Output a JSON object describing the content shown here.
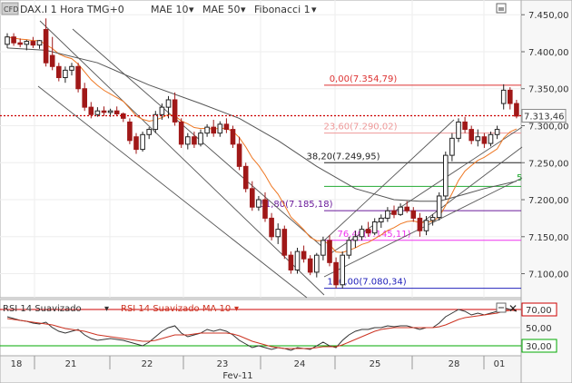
{
  "header": {
    "logo": "CFD",
    "symbol": "DAX.I 1 Hora TMG+0",
    "indicators": [
      {
        "label": "MAE 10",
        "color": "#ee7722"
      },
      {
        "label": "MAE 50",
        "color": "#555555"
      },
      {
        "label": "Fibonacci 1",
        "color": "#555555"
      }
    ]
  },
  "rsi_header": {
    "rsi_label": "RSI 14 Suavizado",
    "ma_label": "RSI 14 Suavizado MA 10"
  },
  "colors": {
    "up_candle": "#222222",
    "down_candle": "#a01818",
    "mae10": "#ee7722",
    "mae50": "#555555",
    "channel": "#555555",
    "current_price_line": "#cc0000",
    "rsi_line": "#333333",
    "rsi_ma": "#cc3322",
    "rsi_upper": "#cc0000",
    "rsi_lower": "#00aa00"
  },
  "chart_data": {
    "type": "candlestick",
    "x_tick_labels": [
      "18",
      "21",
      "22",
      "23",
      "24",
      "25",
      "28",
      "01"
    ],
    "x_group_label": "Fev-11",
    "y_tick_labels": [
      "7.450,00",
      "7.400,00",
      "7.350,00",
      "7.300,00",
      "7.250,00",
      "7.200,00",
      "7.150,00",
      "7.100,00"
    ],
    "ylim": [
      7070,
      7465
    ],
    "current_price": 7313.46,
    "current_price_label": "7.313,46",
    "fibonacci": [
      {
        "label": "0,00(7.354,79)",
        "value": 7354.79,
        "color": "#dd3333"
      },
      {
        "label": "23,60(7.290,02)",
        "value": 7290.02,
        "color": "#ee9999"
      },
      {
        "label": "38,20(7.249,95)",
        "value": 7249.95,
        "color": "#222222"
      },
      {
        "label": "61,80(7.185,18)",
        "value": 7185.18,
        "color": "#6a1a9a"
      },
      {
        "label": "76,40(7.145,11)",
        "value": 7145.11,
        "color": "#ee33ee"
      },
      {
        "label": "100,00(7.080,34)",
        "value": 7080.34,
        "color": "#2222bb"
      }
    ],
    "fib_right_label": "5",
    "candles": [
      [
        7410,
        7425,
        7405,
        7420
      ],
      [
        7420,
        7425,
        7408,
        7412
      ],
      [
        7412,
        7418,
        7406,
        7410
      ],
      [
        7410,
        7416,
        7402,
        7414
      ],
      [
        7414,
        7420,
        7405,
        7409
      ],
      [
        7409,
        7416,
        7404,
        7415
      ],
      [
        7430,
        7445,
        7380,
        7385
      ],
      [
        7395,
        7420,
        7375,
        7380
      ],
      [
        7380,
        7385,
        7360,
        7365
      ],
      [
        7365,
        7380,
        7358,
        7375
      ],
      [
        7375,
        7385,
        7368,
        7380
      ],
      [
        7380,
        7385,
        7345,
        7350
      ],
      [
        7350,
        7358,
        7320,
        7325
      ],
      [
        7325,
        7332,
        7310,
        7315
      ],
      [
        7315,
        7325,
        7312,
        7320
      ],
      [
        7320,
        7326,
        7313,
        7318
      ],
      [
        7318,
        7323,
        7312,
        7320
      ],
      [
        7320,
        7326,
        7314,
        7316
      ],
      [
        7316,
        7318,
        7305,
        7310
      ],
      [
        7305,
        7310,
        7275,
        7280
      ],
      [
        7285,
        7290,
        7262,
        7268
      ],
      [
        7268,
        7292,
        7265,
        7288
      ],
      [
        7288,
        7298,
        7282,
        7295
      ],
      [
        7295,
        7320,
        7290,
        7315
      ],
      [
        7315,
        7330,
        7308,
        7325
      ],
      [
        7325,
        7340,
        7310,
        7335
      ],
      [
        7335,
        7345,
        7300,
        7305
      ],
      [
        7305,
        7310,
        7270,
        7275
      ],
      [
        7275,
        7290,
        7268,
        7285
      ],
      [
        7285,
        7292,
        7270,
        7275
      ],
      [
        7275,
        7295,
        7272,
        7290
      ],
      [
        7290,
        7302,
        7285,
        7298
      ],
      [
        7298,
        7308,
        7285,
        7290
      ],
      [
        7290,
        7306,
        7285,
        7302
      ],
      [
        7302,
        7310,
        7290,
        7295
      ],
      [
        7295,
        7300,
        7270,
        7275
      ],
      [
        7275,
        7285,
        7240,
        7245
      ],
      [
        7245,
        7250,
        7210,
        7215
      ],
      [
        7215,
        7225,
        7185,
        7190
      ],
      [
        7190,
        7205,
        7185,
        7200
      ],
      [
        7200,
        7210,
        7170,
        7175
      ],
      [
        7175,
        7182,
        7145,
        7150
      ],
      [
        7150,
        7168,
        7140,
        7160
      ],
      [
        7160,
        7165,
        7120,
        7125
      ],
      [
        7125,
        7130,
        7100,
        7105
      ],
      [
        7105,
        7135,
        7100,
        7130
      ],
      [
        7130,
        7138,
        7115,
        7120
      ],
      [
        7120,
        7125,
        7098,
        7102
      ],
      [
        7102,
        7128,
        7095,
        7125
      ],
      [
        7125,
        7150,
        7118,
        7145
      ],
      [
        7145,
        7152,
        7110,
        7115
      ],
      [
        7115,
        7122,
        7080,
        7085
      ],
      [
        7085,
        7130,
        7080,
        7125
      ],
      [
        7125,
        7150,
        7120,
        7145
      ],
      [
        7145,
        7158,
        7135,
        7150
      ],
      [
        7150,
        7165,
        7145,
        7160
      ],
      [
        7160,
        7170,
        7150,
        7155
      ],
      [
        7155,
        7175,
        7152,
        7170
      ],
      [
        7170,
        7180,
        7162,
        7175
      ],
      [
        7175,
        7190,
        7170,
        7185
      ],
      [
        7185,
        7192,
        7175,
        7180
      ],
      [
        7180,
        7195,
        7178,
        7190
      ],
      [
        7190,
        7198,
        7182,
        7185
      ],
      [
        7185,
        7190,
        7170,
        7175
      ],
      [
        7175,
        7182,
        7150,
        7158
      ],
      [
        7158,
        7178,
        7152,
        7172
      ],
      [
        7172,
        7180,
        7165,
        7176
      ],
      [
        7176,
        7210,
        7172,
        7205
      ],
      [
        7205,
        7265,
        7200,
        7260
      ],
      [
        7260,
        7290,
        7252,
        7283
      ],
      [
        7283,
        7310,
        7278,
        7305
      ],
      [
        7305,
        7312,
        7290,
        7295
      ],
      [
        7295,
        7300,
        7275,
        7280
      ],
      [
        7280,
        7295,
        7272,
        7285
      ],
      [
        7285,
        7290,
        7270,
        7276
      ],
      [
        7276,
        7292,
        7272,
        7288
      ],
      [
        7288,
        7300,
        7282,
        7295
      ],
      [
        7330,
        7356,
        7322,
        7348
      ],
      [
        7348,
        7352,
        7322,
        7330
      ],
      [
        7330,
        7335,
        7310,
        7313
      ]
    ],
    "mae50": [
      [
        0,
        7405
      ],
      [
        6,
        7402
      ],
      [
        14,
        7385
      ],
      [
        22,
        7355
      ],
      [
        30,
        7330
      ],
      [
        36,
        7310
      ],
      [
        42,
        7280
      ],
      [
        48,
        7245
      ],
      [
        54,
        7215
      ],
      [
        60,
        7200
      ],
      [
        64,
        7198
      ],
      [
        67,
        7198
      ],
      [
        70,
        7205
      ],
      [
        74,
        7215
      ],
      [
        79,
        7225
      ]
    ],
    "rsi": {
      "ylim": [
        20,
        80
      ],
      "tick_labels": [
        "70,00",
        "50,00",
        "30,00"
      ],
      "upper": 70,
      "lower": 30,
      "series": [
        62,
        60,
        58,
        57,
        55,
        54,
        56,
        50,
        46,
        44,
        46,
        48,
        42,
        38,
        36,
        37,
        38,
        37,
        36,
        34,
        32,
        30,
        34,
        40,
        46,
        50,
        52,
        44,
        40,
        42,
        44,
        48,
        46,
        48,
        46,
        42,
        36,
        32,
        28,
        30,
        28,
        26,
        28,
        27,
        25,
        28,
        27,
        26,
        30,
        34,
        30,
        28,
        36,
        42,
        46,
        48,
        48,
        50,
        50,
        52,
        51,
        52,
        52,
        50,
        48,
        50,
        50,
        55,
        62,
        66,
        70,
        68,
        64,
        66,
        64,
        66,
        68,
        72,
        70,
        68
      ],
      "ma": [
        60,
        59,
        58,
        57,
        56,
        55,
        54,
        53,
        51,
        49,
        48,
        47,
        46,
        44,
        42,
        41,
        40,
        39,
        38,
        37,
        36,
        35,
        35,
        36,
        38,
        40,
        42,
        42,
        42,
        43,
        44,
        44,
        44,
        44,
        44,
        43,
        41,
        38,
        35,
        33,
        31,
        29,
        28,
        27,
        27,
        27,
        27,
        27,
        28,
        29,
        29,
        29,
        31,
        34,
        37,
        40,
        43,
        46,
        48,
        49,
        50,
        50,
        50,
        50,
        50,
        50,
        50,
        51,
        53,
        56,
        59,
        61,
        62,
        63,
        64,
        65,
        66,
        68,
        69,
        69
      ]
    }
  }
}
